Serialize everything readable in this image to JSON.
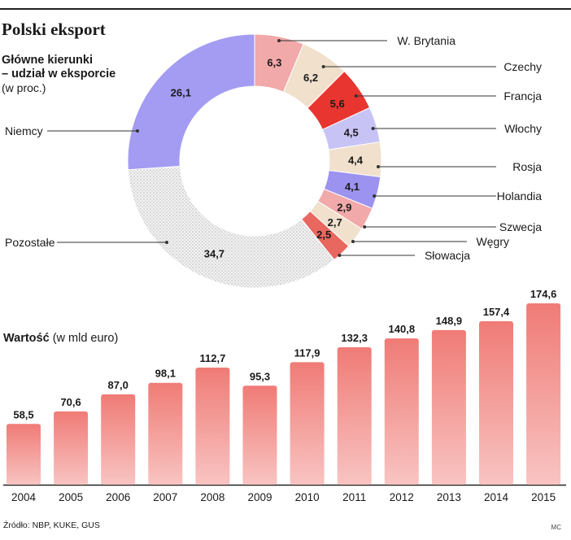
{
  "header": {
    "title": "Polski eksport",
    "donut_title": "Główne kierunki\n– udział w eksporcie",
    "donut_unit": "(w proc.)",
    "bar_title_bold": "Wartość",
    "bar_title_unit": "(w mld euro)",
    "source": "Źródło: NBP, KUKE, GUS",
    "author": "MC"
  },
  "chart_data": [
    {
      "type": "pie",
      "variant": "donut",
      "title": "Główne kierunki – udział w eksporcie",
      "unit": "(w proc.)",
      "slices": [
        {
          "label": "W. Brytania",
          "value": "6,3",
          "num": 6.3,
          "color": "#f2a9a9"
        },
        {
          "label": "Czechy",
          "value": "6,2",
          "num": 6.2,
          "color": "#f0e0cc"
        },
        {
          "label": "Francja",
          "value": "5,6",
          "num": 5.6,
          "color": "#e8352f"
        },
        {
          "label": "Włochy",
          "value": "4,5",
          "num": 4.5,
          "color": "#c8c3f5"
        },
        {
          "label": "Rosja",
          "value": "4,4",
          "num": 4.4,
          "color": "#f0e0cc"
        },
        {
          "label": "Holandia",
          "value": "4,1",
          "num": 4.1,
          "color": "#9c93f0"
        },
        {
          "label": "Szwecja",
          "value": "2,9",
          "num": 2.9,
          "color": "#f2a9a9"
        },
        {
          "label": "Węgry",
          "value": "2,7",
          "num": 2.7,
          "color": "#f0e0cc"
        },
        {
          "label": "Słowacja",
          "value": "2,5",
          "num": 2.5,
          "color": "#e8675e"
        },
        {
          "label": "Pozostałe",
          "value": "34,7",
          "num": 34.7,
          "color": "#e4e4e4"
        },
        {
          "label": "Niemcy",
          "value": "26,1",
          "num": 26.1,
          "color": "#a39cf2"
        }
      ]
    },
    {
      "type": "bar",
      "title": "Wartość",
      "unit": "(w mld euro)",
      "categories": [
        "2004",
        "2005",
        "2006",
        "2007",
        "2008",
        "2009",
        "2010",
        "2011",
        "2012",
        "2013",
        "2014",
        "2015"
      ],
      "values": [
        58.5,
        70.6,
        87.0,
        98.1,
        112.7,
        95.3,
        117.9,
        132.3,
        140.8,
        148.9,
        157.4,
        174.6
      ],
      "labels": [
        "58,5",
        "70,6",
        "87,0",
        "98,1",
        "112,7",
        "95,3",
        "117,9",
        "132,3",
        "140,8",
        "148,9",
        "157,4",
        "174,6"
      ],
      "ylim": [
        0,
        174.6
      ],
      "grid": false,
      "bar_color_top": "#f07b76",
      "bar_color_bottom": "#f8c4c2"
    }
  ]
}
